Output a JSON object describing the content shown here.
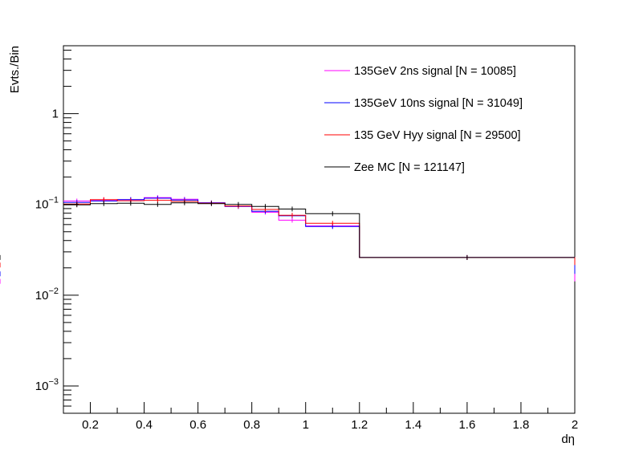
{
  "chart_data": {
    "type": "line",
    "xlabel": "dη",
    "ylabel": "Evts./Bin",
    "xlim": [
      0.1,
      2.0
    ],
    "ylim": [
      0.0005,
      5.6
    ],
    "yscale": "log",
    "grid": false,
    "legend_position": "top-right",
    "x_ticks": [
      0.2,
      0.4,
      0.6,
      0.8,
      1,
      1.2,
      1.4,
      1.6,
      1.8,
      2
    ],
    "x_tick_labels": [
      "0.2",
      "0.4",
      "0.6",
      "0.8",
      "1",
      "1.2",
      "1.4",
      "1.6",
      "1.8",
      "2"
    ],
    "y_ticks": [
      {
        "value": 0.001,
        "base": "10",
        "exp": "−3"
      },
      {
        "value": 0.01,
        "base": "10",
        "exp": "−2"
      },
      {
        "value": 0.1,
        "base": "10",
        "exp": "−1"
      },
      {
        "value": 1,
        "base": "1",
        "exp": ""
      }
    ],
    "bin_edges": [
      0.1,
      0.2,
      0.3,
      0.4,
      0.5,
      0.6,
      0.7,
      0.8,
      0.9,
      1.0,
      1.2,
      2.0
    ],
    "series": [
      {
        "name": "135GeV 2ns signal [N = 10085]",
        "color": "#ff00ff",
        "values": [
          0.109,
          0.112,
          0.113,
          0.119,
          0.114,
          0.104,
          0.095,
          0.082,
          0.067,
          0.058,
          0.026,
          0.0142
        ]
      },
      {
        "name": "135GeV 10ns signal [N = 31049]",
        "color": "#0000ff",
        "values": [
          0.105,
          0.109,
          0.113,
          0.117,
          0.112,
          0.104,
          0.095,
          0.084,
          0.075,
          0.057,
          0.026,
          0.0172
        ]
      },
      {
        "name": "135 GeV Hyy signal [N = 29500]",
        "color": "#ff0000",
        "values": [
          0.101,
          0.113,
          0.11,
          0.111,
          0.108,
          0.103,
          0.096,
          0.088,
          0.076,
          0.062,
          0.026,
          0.0215
        ]
      },
      {
        "name": "Zee MC [N = 121147]",
        "color": "#000000",
        "values": [
          0.099,
          0.102,
          0.103,
          0.1,
          0.104,
          0.102,
          0.1,
          0.095,
          0.089,
          0.079,
          0.026,
          0.026
        ]
      }
    ]
  }
}
